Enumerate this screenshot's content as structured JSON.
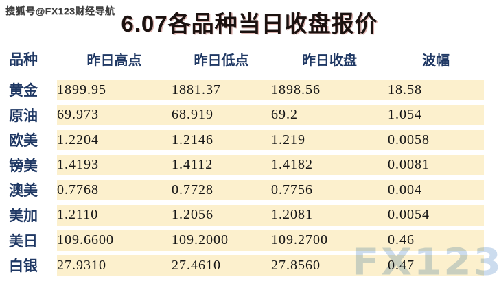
{
  "page": {
    "source_watermark": "搜狐号@FX123财经导航",
    "logo_watermark": "FX123",
    "title": "6.07各品种当日收盘报价"
  },
  "colors": {
    "row_band_background": "#fcf0cd",
    "label_text": "#1f3864",
    "number_text": "#161616",
    "title_text": "#1b1210",
    "logo_watermark_text": "#c7d8ec"
  },
  "table": {
    "headers": {
      "product": "品种",
      "high": "昨日高点",
      "low": "昨日低点",
      "close": "昨日收盘",
      "range": "波幅"
    },
    "rows": [
      {
        "label": "黄金",
        "high": "1899.95",
        "low": "1881.37",
        "close": "1898.56",
        "range": "18.58"
      },
      {
        "label": "原油",
        "high": "69.973",
        "low": "68.919",
        "close": "69.2",
        "range": "1.054"
      },
      {
        "label": "欧美",
        "high": "1.2204",
        "low": "1.2146",
        "close": "1.219",
        "range": "0.0058"
      },
      {
        "label": "镑美",
        "high": "1.4193",
        "low": "1.4112",
        "close": "1.4182",
        "range": "0.0081"
      },
      {
        "label": "澳美",
        "high": "0.7768",
        "low": "0.7728",
        "close": "0.7756",
        "range": "0.004"
      },
      {
        "label": "美加",
        "high": "1.2110",
        "low": "1.2056",
        "close": "1.2081",
        "range": "0.0054"
      },
      {
        "label": "美日",
        "high": "109.6600",
        "low": "109.2000",
        "close": "109.2700",
        "range": "0.46"
      },
      {
        "label": "白银",
        "high": "27.9310",
        "low": "27.4610",
        "close": "27.8560",
        "range": "0.47"
      }
    ]
  }
}
